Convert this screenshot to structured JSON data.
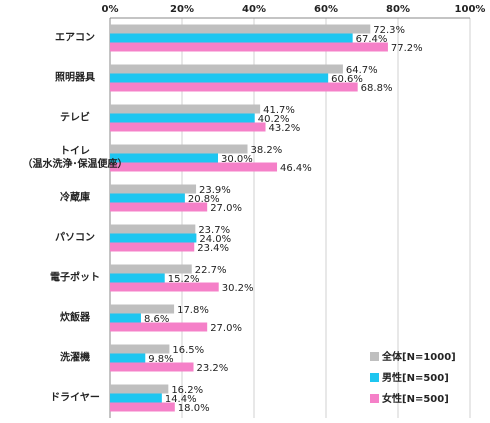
{
  "chart_data": {
    "type": "hbar",
    "categories": [
      "エアコン",
      "照明器具",
      "テレビ",
      "トイレ\n（温水洗浄･保温便座）",
      "冷蔵庫",
      "パソコン",
      "電子ポット",
      "炊飯器",
      "洗濯機",
      "ドライヤー"
    ],
    "series": [
      {
        "name": "全体[N=1000]",
        "color": "#bfbfbf",
        "values": [
          72.3,
          64.7,
          41.7,
          38.2,
          23.9,
          23.7,
          22.7,
          17.8,
          16.5,
          16.2
        ],
        "value_labels": [
          "72.3%",
          "64.7%",
          "41.7%",
          "38.2%",
          "23.9%",
          "23.7%",
          "22.7%",
          "17.8%",
          "16.5%",
          "16.2%"
        ]
      },
      {
        "name": "男性[N=500]",
        "color": "#1ec6f0",
        "values": [
          67.4,
          60.6,
          40.2,
          30,
          20.8,
          24,
          15.2,
          8.6,
          9.8,
          14.4
        ],
        "value_labels": [
          "67.4%",
          "60.6%",
          "40.2%",
          "30.0%",
          "20.8%",
          "24.0%",
          "15.2%",
          "8.6%",
          "9.8%",
          "14.4%"
        ]
      },
      {
        "name": "女性[N=500]",
        "color": "#f580c8",
        "values": [
          77.2,
          68.8,
          43.2,
          46.4,
          27,
          23.4,
          30.2,
          27,
          23.2,
          18
        ],
        "value_labels": [
          "77.2%",
          "68.8%",
          "43.2%",
          "46.4%",
          "27.0%",
          "23.4%",
          "30.2%",
          "27.0%",
          "23.2%",
          "18.0%"
        ]
      }
    ],
    "xlim": [
      0,
      100
    ],
    "xticks": [
      {
        "value": 0,
        "label": "0%"
      },
      {
        "value": 20,
        "label": "20%"
      },
      {
        "value": 40,
        "label": "40%"
      },
      {
        "value": 60,
        "label": "60%"
      },
      {
        "value": 80,
        "label": "80%"
      },
      {
        "value": 100,
        "label": "100%"
      }
    ],
    "grid": true,
    "legend": "lower right"
  }
}
